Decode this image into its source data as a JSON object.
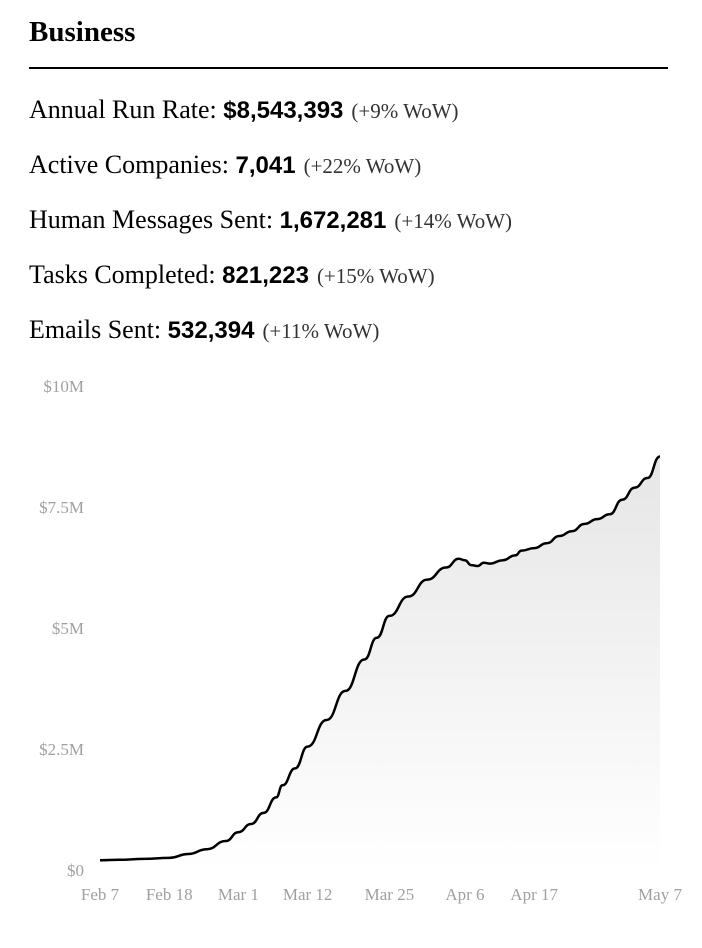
{
  "header": {
    "title": "Business"
  },
  "metrics": [
    {
      "label": "Annual Run Rate: ",
      "value": "$8,543,393",
      "change": "(+9% WoW)"
    },
    {
      "label": "Active Companies: ",
      "value": "7,041",
      "change": "(+22% WoW)"
    },
    {
      "label": "Human Messages Sent: ",
      "value": "1,672,281",
      "change": "(+14% WoW)"
    },
    {
      "label": "Tasks Completed: ",
      "value": "821,223",
      "change": "(+15% WoW)"
    },
    {
      "label": "Emails Sent: ",
      "value": "532,394",
      "change": "(+11% WoW)"
    }
  ],
  "chart_data": {
    "type": "area",
    "title": "",
    "xlabel": "",
    "ylabel": "",
    "ylim": [
      0,
      10000000
    ],
    "grid": false,
    "y_ticks": [
      {
        "value": 0,
        "label": "$0"
      },
      {
        "value": 2500000,
        "label": "$2.5M"
      },
      {
        "value": 5000000,
        "label": "$5M"
      },
      {
        "value": 7500000,
        "label": "$7.5M"
      },
      {
        "value": 10000000,
        "label": "$10M"
      }
    ],
    "x_ticks": [
      "Feb 7",
      "Feb 18",
      "Mar 1",
      "Mar 12",
      "Mar 25",
      "Apr 6",
      "Apr 17",
      "May 7"
    ],
    "colors": {
      "line": "#000000",
      "fill_top": "#e6e6e6",
      "fill_bottom": "#ffffff",
      "tick": "#a0a0a0"
    },
    "series": [
      {
        "x": [
          "2023-02-07",
          "2023-02-10",
          "2023-02-14",
          "2023-02-18",
          "2023-02-21",
          "2023-02-24",
          "2023-02-27",
          "2023-03-01",
          "2023-03-03",
          "2023-03-05",
          "2023-03-07",
          "2023-03-08",
          "2023-03-10",
          "2023-03-12",
          "2023-03-15",
          "2023-03-18",
          "2023-03-21",
          "2023-03-23",
          "2023-03-25",
          "2023-03-28",
          "2023-03-31",
          "2023-04-03",
          "2023-04-05",
          "2023-04-06",
          "2023-04-07",
          "2023-04-08",
          "2023-04-09",
          "2023-04-10",
          "2023-04-12",
          "2023-04-14",
          "2023-04-15",
          "2023-04-17",
          "2023-04-19",
          "2023-04-21",
          "2023-04-23",
          "2023-04-25",
          "2023-04-27",
          "2023-04-29",
          "2023-05-01",
          "2023-05-03",
          "2023-05-05",
          "2023-05-07"
        ],
        "y": [
          200000,
          210000,
          230000,
          250000,
          330000,
          430000,
          600000,
          780000,
          950000,
          1180000,
          1500000,
          1750000,
          2100000,
          2550000,
          3100000,
          3700000,
          4350000,
          4800000,
          5250000,
          5650000,
          6000000,
          6250000,
          6430000,
          6400000,
          6300000,
          6280000,
          6350000,
          6330000,
          6400000,
          6500000,
          6600000,
          6650000,
          6750000,
          6900000,
          7000000,
          7150000,
          7250000,
          7350000,
          7650000,
          7900000,
          8100000,
          8543393
        ]
      }
    ]
  }
}
